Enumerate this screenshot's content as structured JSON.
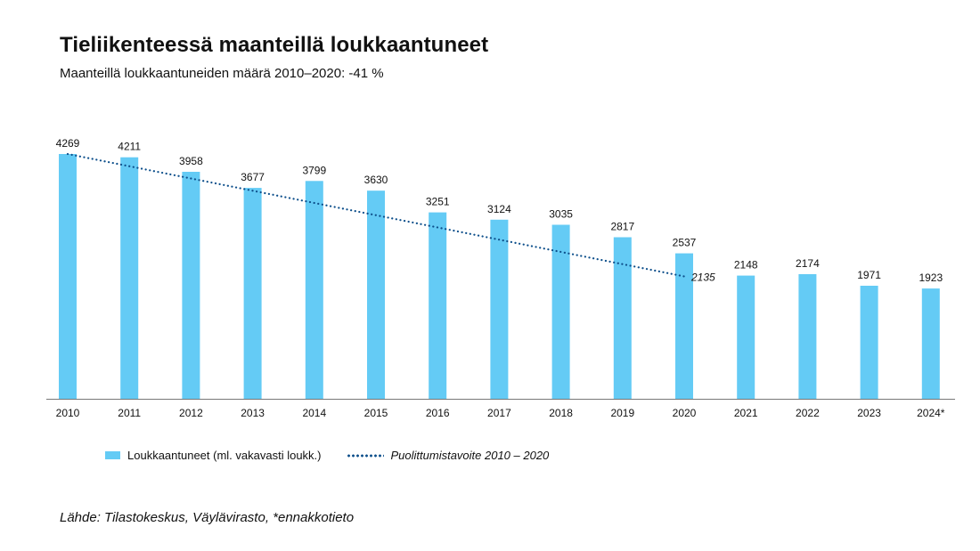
{
  "chart_data": {
    "type": "bar",
    "title": "Tieliikenteessä maanteillä loukkaantuneet",
    "subtitle": "Maanteillä loukkaantuneiden määrä 2010–2020: -41 %",
    "categories": [
      "2010",
      "2011",
      "2012",
      "2013",
      "2014",
      "2015",
      "2016",
      "2017",
      "2018",
      "2019",
      "2020",
      "2021",
      "2022",
      "2023",
      "2024*"
    ],
    "series": [
      {
        "name": "Loukkaantuneet (ml. vakavasti loukk.)",
        "type": "bar",
        "color": "#64cbf5",
        "values": [
          4269,
          4211,
          3958,
          3677,
          3799,
          3630,
          3251,
          3124,
          3035,
          2817,
          2537,
          2148,
          2174,
          1971,
          1923
        ]
      },
      {
        "name": "Puolittumistavoite 2010 – 2020",
        "type": "line",
        "style": "dotted",
        "color": "#0d4f8b",
        "x": [
          "2010",
          "2020"
        ],
        "values": [
          4269,
          2135
        ],
        "end_label": "2135"
      }
    ],
    "ylim": [
      0,
      4400
    ],
    "grid": false,
    "legend_position": "bottom-left",
    "source": "Lähde: Tilastokeskus, Väylävirasto, *ennakkotieto"
  }
}
